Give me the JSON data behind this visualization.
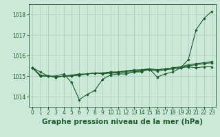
{
  "background_color": "#cce8d8",
  "grid_color": "#aaccbb",
  "line_color": "#1a5c2a",
  "xlabel": "Graphe pression niveau de la mer (hPa)",
  "xlabel_fontsize": 7.5,
  "tick_fontsize": 5.5,
  "ylim": [
    1013.5,
    1018.5
  ],
  "yticks": [
    1014,
    1015,
    1016,
    1017,
    1018
  ],
  "xlim": [
    -0.5,
    23.5
  ],
  "xticks": [
    0,
    1,
    2,
    3,
    4,
    5,
    6,
    7,
    8,
    9,
    10,
    11,
    12,
    13,
    14,
    15,
    16,
    17,
    18,
    19,
    20,
    21,
    22,
    23
  ],
  "series": [
    [
      1015.4,
      1015.2,
      1015.0,
      1015.0,
      1015.1,
      1014.7,
      1013.85,
      1014.1,
      1014.3,
      1014.85,
      1015.05,
      1015.1,
      1015.1,
      1015.2,
      1015.2,
      1015.35,
      1014.95,
      1015.1,
      1015.2,
      1015.4,
      1015.8,
      1017.25,
      1017.8,
      1018.15
    ],
    [
      1015.4,
      1015.0,
      1015.0,
      1014.95,
      1015.0,
      1015.05,
      1015.1,
      1015.1,
      1015.15,
      1015.1,
      1015.15,
      1015.15,
      1015.2,
      1015.2,
      1015.25,
      1015.3,
      1015.25,
      1015.3,
      1015.35,
      1015.4,
      1015.45,
      1015.4,
      1015.45,
      1015.45
    ],
    [
      1015.4,
      1015.05,
      1015.0,
      1014.95,
      1015.0,
      1015.0,
      1015.05,
      1015.1,
      1015.15,
      1015.15,
      1015.15,
      1015.2,
      1015.25,
      1015.25,
      1015.3,
      1015.35,
      1015.3,
      1015.35,
      1015.4,
      1015.4,
      1015.5,
      1015.55,
      1015.6,
      1015.65
    ],
    [
      1015.4,
      1015.0,
      1015.0,
      1014.95,
      1015.0,
      1015.0,
      1015.05,
      1015.1,
      1015.15,
      1015.15,
      1015.2,
      1015.2,
      1015.25,
      1015.3,
      1015.3,
      1015.35,
      1015.3,
      1015.35,
      1015.4,
      1015.45,
      1015.55,
      1015.6,
      1015.65,
      1015.7
    ]
  ]
}
